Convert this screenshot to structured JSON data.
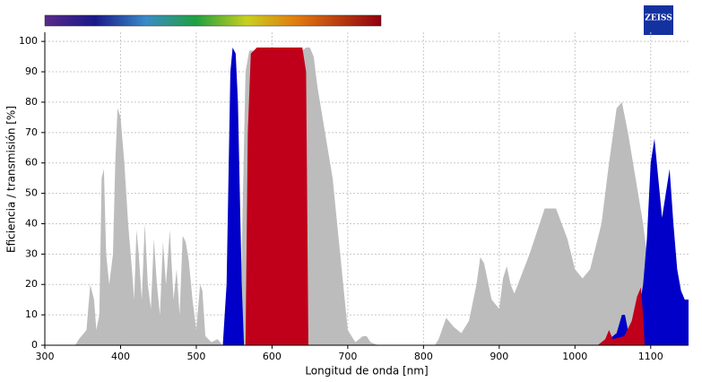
{
  "logo": "ZEISS",
  "chart_data": {
    "type": "area",
    "xlabel": "Longitud de onda [nm]",
    "ylabel": "Eficiencia / transmisión [%]",
    "xlim": [
      300,
      1150
    ],
    "ylim": [
      0,
      103
    ],
    "xticks": [
      300,
      400,
      500,
      600,
      700,
      800,
      900,
      1000,
      1100
    ],
    "yticks": [
      0,
      10,
      20,
      30,
      40,
      50,
      60,
      70,
      80,
      90,
      100
    ],
    "grid": true,
    "series": [
      {
        "color": "#bcbcbc",
        "x": [
          340,
          345,
          355,
          360,
          365,
          368,
          372,
          375,
          378,
          381,
          385,
          390,
          393,
          396,
          400,
          405,
          410,
          415,
          418,
          421,
          424,
          428,
          432,
          436,
          440,
          444,
          448,
          452,
          456,
          460,
          465,
          470,
          474,
          478,
          482,
          486,
          490,
          495,
          500,
          505,
          508,
          512,
          520,
          528,
          535,
          555,
          560,
          565,
          570,
          640,
          645,
          650,
          655,
          660,
          670,
          680,
          690,
          700,
          710,
          720,
          725,
          730,
          740,
          815,
          820,
          830,
          840,
          850,
          860,
          870,
          875,
          880,
          890,
          900,
          905,
          910,
          915,
          920,
          940,
          960,
          975,
          990,
          1000,
          1010,
          1020,
          1035,
          1045,
          1055,
          1062,
          1070,
          1080,
          1090,
          1095,
          1100,
          1110,
          1120,
          1130,
          1140,
          1150
        ],
        "values": [
          0,
          2,
          5,
          20,
          15,
          5,
          10,
          55,
          58,
          30,
          20,
          30,
          60,
          78,
          75,
          60,
          40,
          25,
          15,
          38,
          30,
          15,
          40,
          20,
          12,
          35,
          20,
          10,
          34,
          20,
          38,
          15,
          25,
          10,
          36,
          34,
          28,
          15,
          5,
          20,
          18,
          3,
          1,
          2,
          0,
          2,
          30,
          90,
          97,
          97,
          98,
          98,
          95,
          85,
          70,
          55,
          30,
          5,
          1,
          3,
          3,
          1,
          0,
          0,
          2,
          9,
          6,
          4,
          8,
          20,
          29,
          27,
          15,
          12,
          22,
          26,
          20,
          17,
          30,
          45,
          45,
          35,
          25,
          22,
          25,
          40,
          60,
          78,
          80,
          70,
          55,
          40,
          30,
          20,
          22,
          15,
          10,
          5,
          4
        ]
      },
      {
        "color": "#0000c8",
        "x": [
          535,
          540,
          545,
          548,
          552,
          555,
          560,
          563,
          null,
          1030,
          1045,
          1055,
          1062,
          1066,
          1070,
          1080,
          1090,
          1095,
          1100,
          1105,
          1110,
          1115,
          1120,
          1125,
          1130,
          1135,
          1140,
          1145,
          1150
        ],
        "values": [
          0,
          20,
          90,
          98,
          96,
          80,
          20,
          0,
          null,
          0,
          2,
          4,
          10,
          10,
          5,
          5,
          20,
          35,
          60,
          68,
          55,
          42,
          50,
          58,
          40,
          25,
          18,
          15,
          15
        ]
      },
      {
        "color": "#c0001a",
        "x": [
          565,
          568,
          572,
          580,
          640,
          645,
          648,
          null,
          1030,
          1040,
          1045,
          1050,
          1065,
          1075,
          1082,
          1087,
          1090,
          1092
        ],
        "values": [
          0,
          70,
          96,
          98,
          98,
          90,
          0,
          null,
          0,
          2,
          5,
          2,
          3,
          8,
          16,
          19,
          10,
          0
        ]
      }
    ]
  }
}
